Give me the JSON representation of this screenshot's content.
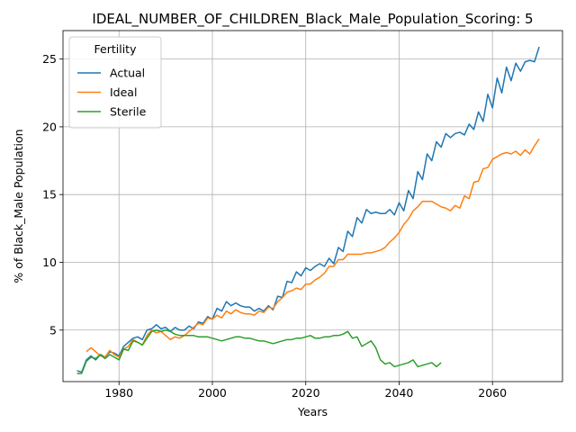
{
  "chart_data": {
    "type": "line",
    "title": "IDEAL_NUMBER_OF_CHILDREN_Black_Male_Population_Scoring: 5",
    "xlabel": "Years",
    "ylabel": "% of Black_Male Population",
    "xlim": [
      1968,
      2075
    ],
    "ylim": [
      1.2,
      27.1
    ],
    "xticks": [
      1980,
      2000,
      2020,
      2040,
      2060
    ],
    "yticks": [
      5,
      10,
      15,
      20,
      25
    ],
    "grid": true,
    "legend": {
      "title": "Fertility",
      "position": "top-left"
    },
    "series": [
      {
        "name": "Actual",
        "color": "#1f77b4",
        "points": [
          [
            1971,
            2.0
          ],
          [
            1972,
            1.9
          ],
          [
            1973,
            2.8
          ],
          [
            1974,
            3.1
          ],
          [
            1975,
            2.8
          ],
          [
            1976,
            3.2
          ],
          [
            1977,
            3.0
          ],
          [
            1978,
            3.4
          ],
          [
            1979,
            3.3
          ],
          [
            1980,
            3.1
          ],
          [
            1981,
            3.8
          ],
          [
            1982,
            4.1
          ],
          [
            1983,
            4.4
          ],
          [
            1984,
            4.5
          ],
          [
            1985,
            4.3
          ],
          [
            1986,
            5.0
          ],
          [
            1987,
            5.1
          ],
          [
            1988,
            5.4
          ],
          [
            1989,
            5.1
          ],
          [
            1990,
            5.2
          ],
          [
            1991,
            4.9
          ],
          [
            1992,
            5.2
          ],
          [
            1993,
            5.0
          ],
          [
            1994,
            5.0
          ],
          [
            1995,
            5.3
          ],
          [
            1996,
            5.1
          ],
          [
            1997,
            5.6
          ],
          [
            1998,
            5.5
          ],
          [
            1999,
            6.0
          ],
          [
            2000,
            5.8
          ],
          [
            2001,
            6.6
          ],
          [
            2002,
            6.4
          ],
          [
            2003,
            7.1
          ],
          [
            2004,
            6.8
          ],
          [
            2005,
            7.0
          ],
          [
            2006,
            6.8
          ],
          [
            2007,
            6.7
          ],
          [
            2008,
            6.7
          ],
          [
            2009,
            6.4
          ],
          [
            2010,
            6.6
          ],
          [
            2011,
            6.4
          ],
          [
            2012,
            6.8
          ],
          [
            2013,
            6.5
          ],
          [
            2014,
            7.5
          ],
          [
            2015,
            7.4
          ],
          [
            2016,
            8.6
          ],
          [
            2017,
            8.5
          ],
          [
            2018,
            9.3
          ],
          [
            2019,
            9.0
          ],
          [
            2020,
            9.6
          ],
          [
            2021,
            9.4
          ],
          [
            2022,
            9.7
          ],
          [
            2023,
            9.9
          ],
          [
            2024,
            9.7
          ],
          [
            2025,
            10.3
          ],
          [
            2026,
            9.9
          ],
          [
            2027,
            11.1
          ],
          [
            2028,
            10.8
          ],
          [
            2029,
            12.3
          ],
          [
            2030,
            11.9
          ],
          [
            2031,
            13.3
          ],
          [
            2032,
            12.9
          ],
          [
            2033,
            13.9
          ],
          [
            2034,
            13.6
          ],
          [
            2035,
            13.7
          ],
          [
            2036,
            13.6
          ],
          [
            2037,
            13.6
          ],
          [
            2038,
            13.9
          ],
          [
            2039,
            13.5
          ],
          [
            2040,
            14.4
          ],
          [
            2041,
            13.8
          ],
          [
            2042,
            15.3
          ],
          [
            2043,
            14.7
          ],
          [
            2044,
            16.7
          ],
          [
            2045,
            16.1
          ],
          [
            2046,
            18.0
          ],
          [
            2047,
            17.5
          ],
          [
            2048,
            18.9
          ],
          [
            2049,
            18.5
          ],
          [
            2050,
            19.5
          ],
          [
            2051,
            19.2
          ],
          [
            2052,
            19.5
          ],
          [
            2053,
            19.6
          ],
          [
            2054,
            19.4
          ],
          [
            2055,
            20.2
          ],
          [
            2056,
            19.8
          ],
          [
            2057,
            21.1
          ],
          [
            2058,
            20.4
          ],
          [
            2059,
            22.4
          ],
          [
            2060,
            21.4
          ],
          [
            2061,
            23.6
          ],
          [
            2062,
            22.5
          ],
          [
            2063,
            24.4
          ],
          [
            2064,
            23.4
          ],
          [
            2065,
            24.7
          ],
          [
            2066,
            24.1
          ],
          [
            2067,
            24.8
          ],
          [
            2068,
            24.9
          ],
          [
            2069,
            24.8
          ],
          [
            2070,
            25.9
          ]
        ]
      },
      {
        "name": "Ideal",
        "color": "#ff7f0e",
        "points": [
          [
            1973,
            3.4
          ],
          [
            1974,
            3.7
          ],
          [
            1975,
            3.4
          ],
          [
            1976,
            3.1
          ],
          [
            1977,
            3.0
          ],
          [
            1978,
            3.5
          ],
          [
            1979,
            3.2
          ],
          [
            1980,
            3.0
          ],
          [
            1981,
            3.6
          ],
          [
            1982,
            3.8
          ],
          [
            1983,
            4.3
          ],
          [
            1984,
            4.1
          ],
          [
            1985,
            3.9
          ],
          [
            1986,
            4.6
          ],
          [
            1987,
            5.0
          ],
          [
            1988,
            4.8
          ],
          [
            1989,
            4.9
          ],
          [
            1990,
            4.6
          ],
          [
            1991,
            4.3
          ],
          [
            1992,
            4.5
          ],
          [
            1993,
            4.4
          ],
          [
            1994,
            4.6
          ],
          [
            1995,
            4.9
          ],
          [
            1996,
            5.2
          ],
          [
            1997,
            5.5
          ],
          [
            1998,
            5.4
          ],
          [
            1999,
            5.9
          ],
          [
            2000,
            5.8
          ],
          [
            2001,
            6.1
          ],
          [
            2002,
            5.9
          ],
          [
            2003,
            6.4
          ],
          [
            2004,
            6.2
          ],
          [
            2005,
            6.5
          ],
          [
            2006,
            6.3
          ],
          [
            2007,
            6.2
          ],
          [
            2008,
            6.2
          ],
          [
            2009,
            6.1
          ],
          [
            2010,
            6.4
          ],
          [
            2011,
            6.3
          ],
          [
            2012,
            6.7
          ],
          [
            2013,
            6.6
          ],
          [
            2014,
            7.1
          ],
          [
            2015,
            7.4
          ],
          [
            2016,
            7.8
          ],
          [
            2017,
            7.9
          ],
          [
            2018,
            8.1
          ],
          [
            2019,
            8.0
          ],
          [
            2020,
            8.4
          ],
          [
            2021,
            8.4
          ],
          [
            2022,
            8.7
          ],
          [
            2023,
            8.9
          ],
          [
            2024,
            9.2
          ],
          [
            2025,
            9.7
          ],
          [
            2026,
            9.7
          ],
          [
            2027,
            10.2
          ],
          [
            2028,
            10.2
          ],
          [
            2029,
            10.6
          ],
          [
            2030,
            10.6
          ],
          [
            2031,
            10.6
          ],
          [
            2032,
            10.6
          ],
          [
            2033,
            10.7
          ],
          [
            2034,
            10.7
          ],
          [
            2035,
            10.8
          ],
          [
            2036,
            10.9
          ],
          [
            2037,
            11.1
          ],
          [
            2038,
            11.5
          ],
          [
            2039,
            11.8
          ],
          [
            2040,
            12.2
          ],
          [
            2041,
            12.8
          ],
          [
            2042,
            13.2
          ],
          [
            2043,
            13.8
          ],
          [
            2044,
            14.1
          ],
          [
            2045,
            14.5
          ],
          [
            2046,
            14.5
          ],
          [
            2047,
            14.5
          ],
          [
            2048,
            14.3
          ],
          [
            2049,
            14.1
          ],
          [
            2050,
            14.0
          ],
          [
            2051,
            13.8
          ],
          [
            2052,
            14.2
          ],
          [
            2053,
            14.0
          ],
          [
            2054,
            14.9
          ],
          [
            2055,
            14.7
          ],
          [
            2056,
            15.9
          ],
          [
            2057,
            16.0
          ],
          [
            2058,
            16.9
          ],
          [
            2059,
            17.0
          ],
          [
            2060,
            17.6
          ],
          [
            2061,
            17.8
          ],
          [
            2062,
            18.0
          ],
          [
            2063,
            18.1
          ],
          [
            2064,
            18.0
          ],
          [
            2065,
            18.2
          ],
          [
            2066,
            17.9
          ],
          [
            2067,
            18.3
          ],
          [
            2068,
            18.0
          ],
          [
            2069,
            18.6
          ],
          [
            2070,
            19.1
          ]
        ]
      },
      {
        "name": "Sterile",
        "color": "#2ca02c",
        "points": [
          [
            1971,
            1.8
          ],
          [
            1972,
            1.8
          ],
          [
            1973,
            2.7
          ],
          [
            1974,
            3.0
          ],
          [
            1975,
            2.9
          ],
          [
            1976,
            3.2
          ],
          [
            1977,
            2.9
          ],
          [
            1978,
            3.2
          ],
          [
            1979,
            3.0
          ],
          [
            1980,
            2.8
          ],
          [
            1981,
            3.6
          ],
          [
            1982,
            3.5
          ],
          [
            1983,
            4.2
          ],
          [
            1984,
            4.1
          ],
          [
            1985,
            3.9
          ],
          [
            1986,
            4.4
          ],
          [
            1987,
            4.9
          ],
          [
            1988,
            5.0
          ],
          [
            1989,
            4.9
          ],
          [
            1990,
            5.0
          ],
          [
            1991,
            4.9
          ],
          [
            1992,
            4.7
          ],
          [
            1993,
            4.6
          ],
          [
            1994,
            4.6
          ],
          [
            1995,
            4.6
          ],
          [
            1996,
            4.6
          ],
          [
            1997,
            4.5
          ],
          [
            1998,
            4.5
          ],
          [
            1999,
            4.5
          ],
          [
            2000,
            4.4
          ],
          [
            2001,
            4.3
          ],
          [
            2002,
            4.2
          ],
          [
            2003,
            4.3
          ],
          [
            2004,
            4.4
          ],
          [
            2005,
            4.5
          ],
          [
            2006,
            4.5
          ],
          [
            2007,
            4.4
          ],
          [
            2008,
            4.4
          ],
          [
            2009,
            4.3
          ],
          [
            2010,
            4.2
          ],
          [
            2011,
            4.2
          ],
          [
            2012,
            4.1
          ],
          [
            2013,
            4.0
          ],
          [
            2014,
            4.1
          ],
          [
            2015,
            4.2
          ],
          [
            2016,
            4.3
          ],
          [
            2017,
            4.3
          ],
          [
            2018,
            4.4
          ],
          [
            2019,
            4.4
          ],
          [
            2020,
            4.5
          ],
          [
            2021,
            4.6
          ],
          [
            2022,
            4.4
          ],
          [
            2023,
            4.4
          ],
          [
            2024,
            4.5
          ],
          [
            2025,
            4.5
          ],
          [
            2026,
            4.6
          ],
          [
            2027,
            4.6
          ],
          [
            2028,
            4.7
          ],
          [
            2029,
            4.9
          ],
          [
            2030,
            4.4
          ],
          [
            2031,
            4.5
          ],
          [
            2032,
            3.8
          ],
          [
            2033,
            4.0
          ],
          [
            2034,
            4.2
          ],
          [
            2035,
            3.7
          ],
          [
            2036,
            2.8
          ],
          [
            2037,
            2.5
          ],
          [
            2038,
            2.6
          ],
          [
            2039,
            2.3
          ],
          [
            2040,
            2.4
          ],
          [
            2041,
            2.5
          ],
          [
            2042,
            2.6
          ],
          [
            2043,
            2.8
          ],
          [
            2044,
            2.3
          ],
          [
            2045,
            2.4
          ],
          [
            2046,
            2.5
          ],
          [
            2047,
            2.6
          ],
          [
            2048,
            2.3
          ],
          [
            2049,
            2.6
          ]
        ]
      }
    ]
  }
}
